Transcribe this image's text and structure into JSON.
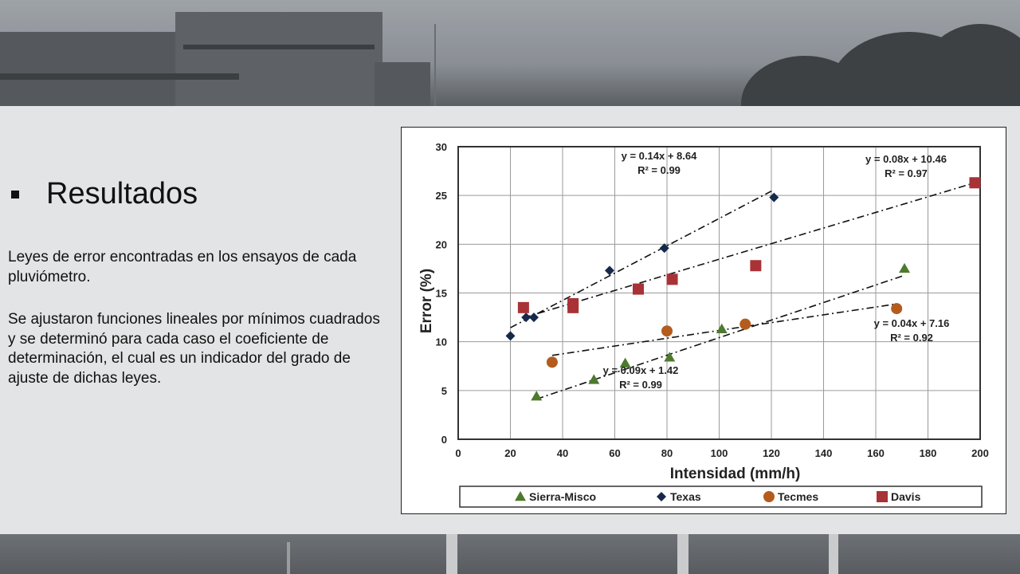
{
  "slide": {
    "heading": "Resultados",
    "paragraph1": "Leyes de error encontradas en los ensayos de cada pluviómetro.",
    "paragraph2": "Se ajustaron funciones lineales por mínimos cuadrados y se determinó para cada caso el coeficiente de determinación, el cual es un indicador del grado de ajuste de dichas leyes."
  },
  "chart_data": {
    "type": "scatter",
    "xlabel": "Intensidad (mm/h)",
    "ylabel": "Error (%)",
    "xlim": [
      0,
      200
    ],
    "ylim": [
      0,
      30
    ],
    "xticks": [
      "0",
      "20",
      "40",
      "60",
      "80",
      "100",
      "120",
      "140",
      "160",
      "180",
      "200"
    ],
    "yticks": [
      "0",
      "5",
      "10",
      "15",
      "20",
      "25",
      "30"
    ],
    "grid": true,
    "legend_position": "bottom",
    "series": [
      {
        "name": "Sierra-Misco",
        "marker": "triangle",
        "color": "#4e7a2e",
        "points": [
          [
            30,
            4.4
          ],
          [
            52,
            6.1
          ],
          [
            64,
            7.8
          ],
          [
            81,
            8.4
          ],
          [
            101,
            11.3
          ],
          [
            171,
            17.5
          ]
        ],
        "fit": {
          "equation": "y = 0.09x + 1.42",
          "r2": "R² = 0.99",
          "x_range": [
            30,
            171
          ],
          "slope": 0.09,
          "intercept": 1.42
        }
      },
      {
        "name": "Texas",
        "marker": "diamond",
        "color": "#16294b",
        "points": [
          [
            20,
            10.6
          ],
          [
            26,
            12.5
          ],
          [
            29,
            12.5
          ],
          [
            58,
            17.3
          ],
          [
            79,
            19.6
          ],
          [
            121,
            24.8
          ]
        ],
        "fit": {
          "equation": "y = 0.14x + 8.64",
          "r2": "R² = 0.99",
          "x_range": [
            20,
            121
          ],
          "slope": 0.14,
          "intercept": 8.64
        }
      },
      {
        "name": "Tecmes",
        "marker": "circle",
        "color": "#b35c1e",
        "points": [
          [
            36,
            7.9
          ],
          [
            80,
            11.1
          ],
          [
            110,
            11.8
          ],
          [
            168,
            13.4
          ]
        ],
        "fit": {
          "equation": "y = 0.04x + 7.16",
          "r2": "R² = 0.92",
          "x_range": [
            36,
            168
          ],
          "slope": 0.04,
          "intercept": 7.16
        }
      },
      {
        "name": "Davis",
        "marker": "square",
        "color": "#a83236",
        "points": [
          [
            25,
            13.5
          ],
          [
            44,
            13.9
          ],
          [
            44,
            13.5
          ],
          [
            69,
            15.4
          ],
          [
            82,
            16.4
          ],
          [
            114,
            17.8
          ],
          [
            198,
            26.3
          ]
        ],
        "fit": {
          "equation": "y = 0.08x + 10.46",
          "r2": "R² = 0.97",
          "x_range": [
            25,
            198
          ],
          "slope": 0.08,
          "intercept": 10.46
        }
      }
    ]
  }
}
